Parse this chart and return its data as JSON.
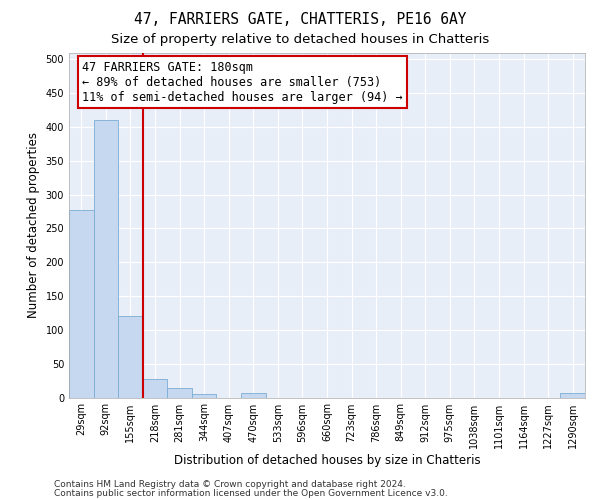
{
  "title": "47, FARRIERS GATE, CHATTERIS, PE16 6AY",
  "subtitle": "Size of property relative to detached houses in Chatteris",
  "xlabel": "Distribution of detached houses by size in Chatteris",
  "ylabel": "Number of detached properties",
  "categories": [
    "29sqm",
    "92sqm",
    "155sqm",
    "218sqm",
    "281sqm",
    "344sqm",
    "407sqm",
    "470sqm",
    "533sqm",
    "596sqm",
    "660sqm",
    "723sqm",
    "786sqm",
    "849sqm",
    "912sqm",
    "975sqm",
    "1038sqm",
    "1101sqm",
    "1164sqm",
    "1227sqm",
    "1290sqm"
  ],
  "values": [
    277,
    410,
    120,
    28,
    14,
    5,
    0,
    6,
    0,
    0,
    0,
    0,
    0,
    0,
    0,
    0,
    0,
    0,
    0,
    0,
    6
  ],
  "bar_color": "#c5d8ef",
  "bar_edge_color": "#7aadd4",
  "vline_x": 2.5,
  "vline_color": "#cc0000",
  "annotation_text": "47 FARRIERS GATE: 180sqm\n← 89% of detached houses are smaller (753)\n11% of semi-detached houses are larger (94) →",
  "annotation_box_color": "#ffffff",
  "annotation_box_edge_color": "#cc0000",
  "footer1": "Contains HM Land Registry data © Crown copyright and database right 2024.",
  "footer2": "Contains public sector information licensed under the Open Government Licence v3.0.",
  "ylim": [
    0,
    510
  ],
  "yticks": [
    0,
    50,
    100,
    150,
    200,
    250,
    300,
    350,
    400,
    450,
    500
  ],
  "background_color": "#e8eef8",
  "grid_color": "#ffffff",
  "title_fontsize": 10.5,
  "subtitle_fontsize": 9.5,
  "axis_label_fontsize": 8.5,
  "tick_fontsize": 7,
  "footer_fontsize": 6.5,
  "annotation_fontsize": 8.5
}
